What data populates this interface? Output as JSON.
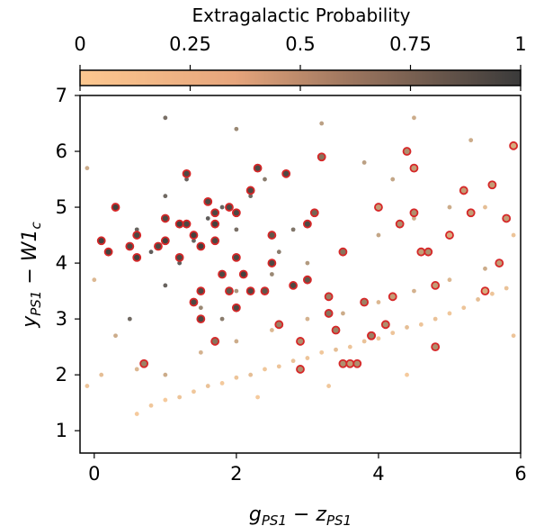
{
  "chart_data": {
    "type": "scatter",
    "title": "",
    "xlabel": "g_PS1 − z_PS1",
    "ylabel": "y_PS1 − W1_c",
    "xlim": [
      -0.2,
      6.0
    ],
    "ylim": [
      0.6,
      7.0
    ],
    "xticks": [
      "0",
      "2",
      "4",
      "6"
    ],
    "yticks": [
      "1",
      "2",
      "3",
      "4",
      "5",
      "6",
      "7"
    ],
    "grid": false,
    "colorbar": {
      "title": "Extragalactic Probability",
      "range": [
        0,
        1
      ],
      "ticks": [
        "0",
        "0.25",
        "0.5",
        "0.75",
        "1"
      ],
      "colormap_low": "#fdc890",
      "colormap_high": "#3a3a3a",
      "placement": "top"
    },
    "series": [
      {
        "marker": "small-dot",
        "points": [
          [
            0.6,
            1.3,
            0.05
          ],
          [
            0.8,
            1.45,
            0.08
          ],
          [
            1.0,
            1.55,
            0.05
          ],
          [
            1.2,
            1.6,
            0.1
          ],
          [
            1.4,
            1.7,
            0.08
          ],
          [
            1.6,
            1.8,
            0.12
          ],
          [
            1.8,
            1.85,
            0.06
          ],
          [
            2.0,
            1.95,
            0.1
          ],
          [
            2.2,
            2.0,
            0.15
          ],
          [
            2.4,
            2.1,
            0.08
          ],
          [
            2.6,
            2.15,
            0.1
          ],
          [
            2.8,
            2.25,
            0.12
          ],
          [
            3.0,
            2.3,
            0.1
          ],
          [
            3.2,
            2.4,
            0.08
          ],
          [
            3.4,
            2.45,
            0.15
          ],
          [
            3.6,
            2.5,
            0.1
          ],
          [
            3.8,
            2.6,
            0.12
          ],
          [
            4.0,
            2.65,
            0.08
          ],
          [
            4.2,
            2.75,
            0.1
          ],
          [
            4.4,
            2.85,
            0.15
          ],
          [
            4.6,
            2.9,
            0.1
          ],
          [
            4.8,
            3.0,
            0.12
          ],
          [
            5.0,
            3.1,
            0.08
          ],
          [
            5.2,
            3.2,
            0.1
          ],
          [
            5.4,
            3.35,
            0.15
          ],
          [
            5.6,
            3.45,
            0.1
          ],
          [
            5.8,
            3.55,
            0.12
          ],
          [
            1.0,
            2.0,
            0.3
          ],
          [
            1.5,
            2.4,
            0.25
          ],
          [
            2.0,
            2.6,
            0.3
          ],
          [
            2.5,
            2.8,
            0.2
          ],
          [
            3.0,
            3.0,
            0.25
          ],
          [
            3.5,
            3.1,
            0.3
          ],
          [
            4.0,
            3.3,
            0.2
          ],
          [
            4.5,
            3.5,
            0.25
          ],
          [
            5.0,
            3.7,
            0.2
          ],
          [
            5.5,
            3.9,
            0.3
          ],
          [
            2.0,
            3.5,
            0.5
          ],
          [
            2.5,
            3.8,
            0.6
          ],
          [
            3.0,
            4.0,
            0.45
          ],
          [
            3.5,
            4.2,
            0.4
          ],
          [
            4.0,
            4.5,
            0.35
          ],
          [
            4.5,
            4.8,
            0.3
          ],
          [
            5.0,
            5.0,
            0.3
          ],
          [
            1.5,
            3.2,
            0.6
          ],
          [
            1.0,
            3.6,
            0.9
          ],
          [
            1.2,
            4.0,
            0.95
          ],
          [
            1.4,
            4.4,
            0.9
          ],
          [
            1.6,
            4.8,
            0.95
          ],
          [
            1.8,
            5.0,
            0.9
          ],
          [
            0.8,
            4.2,
            0.95
          ],
          [
            0.6,
            4.6,
            0.9
          ],
          [
            1.0,
            5.2,
            0.85
          ],
          [
            1.3,
            5.5,
            0.9
          ],
          [
            2.0,
            4.6,
            0.8
          ],
          [
            2.2,
            5.2,
            0.85
          ],
          [
            2.6,
            4.2,
            0.7
          ],
          [
            2.8,
            4.6,
            0.75
          ],
          [
            0.5,
            3.0,
            0.85
          ],
          [
            1.8,
            3.0,
            0.7
          ],
          [
            1.0,
            6.6,
            0.8
          ],
          [
            2.0,
            6.4,
            0.6
          ],
          [
            3.2,
            6.5,
            0.4
          ],
          [
            4.5,
            6.6,
            0.3
          ],
          [
            5.3,
            6.2,
            0.3
          ],
          [
            -0.1,
            1.8,
            0.1
          ],
          [
            0.1,
            2.0,
            0.15
          ],
          [
            -0.1,
            5.7,
            0.3
          ],
          [
            0.0,
            3.7,
            0.2
          ],
          [
            5.9,
            2.7,
            0.1
          ],
          [
            5.9,
            4.5,
            0.1
          ],
          [
            5.5,
            5.0,
            0.15
          ],
          [
            3.8,
            5.8,
            0.4
          ],
          [
            4.2,
            5.5,
            0.35
          ],
          [
            2.4,
            5.5,
            0.7
          ],
          [
            0.3,
            2.7,
            0.3
          ],
          [
            0.6,
            2.1,
            0.2
          ],
          [
            2.3,
            1.6,
            0.05
          ],
          [
            3.3,
            1.8,
            0.08
          ],
          [
            4.4,
            2.0,
            0.05
          ]
        ]
      },
      {
        "marker": "red-ring",
        "points": [
          [
            0.1,
            4.4,
            0.95
          ],
          [
            0.2,
            4.2,
            0.95
          ],
          [
            0.3,
            5.0,
            0.95
          ],
          [
            0.5,
            4.3,
            0.9
          ],
          [
            0.6,
            4.5,
            0.9
          ],
          [
            0.6,
            4.1,
            0.95
          ],
          [
            0.7,
            2.2,
            0.5
          ],
          [
            0.9,
            4.3,
            0.9
          ],
          [
            1.0,
            4.8,
            0.9
          ],
          [
            1.0,
            4.4,
            0.95
          ],
          [
            1.2,
            4.1,
            0.9
          ],
          [
            1.2,
            4.7,
            0.95
          ],
          [
            1.3,
            5.6,
            0.9
          ],
          [
            1.3,
            4.7,
            0.9
          ],
          [
            1.4,
            4.5,
            0.95
          ],
          [
            1.4,
            3.3,
            0.9
          ],
          [
            1.5,
            3.5,
            0.9
          ],
          [
            1.5,
            4.3,
            0.95
          ],
          [
            1.5,
            3.0,
            0.9
          ],
          [
            1.6,
            5.1,
            0.9
          ],
          [
            1.7,
            4.9,
            0.9
          ],
          [
            1.7,
            4.7,
            0.95
          ],
          [
            1.7,
            4.4,
            0.9
          ],
          [
            1.7,
            2.6,
            0.6
          ],
          [
            1.8,
            3.8,
            0.9
          ],
          [
            1.9,
            5.0,
            0.9
          ],
          [
            1.9,
            3.5,
            0.8
          ],
          [
            2.0,
            4.9,
            0.9
          ],
          [
            2.0,
            3.2,
            0.9
          ],
          [
            2.0,
            4.1,
            0.9
          ],
          [
            2.1,
            3.8,
            0.95
          ],
          [
            2.2,
            3.5,
            0.9
          ],
          [
            2.2,
            5.3,
            0.9
          ],
          [
            2.3,
            5.7,
            0.9
          ],
          [
            2.4,
            3.5,
            0.8
          ],
          [
            2.5,
            4.0,
            0.9
          ],
          [
            2.5,
            4.5,
            0.8
          ],
          [
            2.6,
            2.9,
            0.5
          ],
          [
            2.7,
            5.6,
            0.9
          ],
          [
            2.8,
            3.6,
            0.9
          ],
          [
            2.9,
            2.6,
            0.4
          ],
          [
            2.9,
            2.1,
            0.4
          ],
          [
            3.0,
            3.7,
            0.8
          ],
          [
            3.0,
            4.7,
            0.9
          ],
          [
            3.1,
            4.9,
            0.7
          ],
          [
            3.2,
            5.9,
            0.6
          ],
          [
            3.3,
            3.4,
            0.5
          ],
          [
            3.3,
            3.1,
            0.6
          ],
          [
            3.4,
            2.8,
            0.5
          ],
          [
            3.5,
            4.2,
            0.6
          ],
          [
            3.5,
            2.2,
            0.4
          ],
          [
            3.6,
            2.2,
            0.3
          ],
          [
            3.7,
            2.2,
            0.4
          ],
          [
            3.8,
            3.3,
            0.5
          ],
          [
            3.9,
            2.7,
            0.3
          ],
          [
            3.9,
            2.7,
            0.5
          ],
          [
            4.0,
            5.0,
            0.3
          ],
          [
            4.1,
            2.9,
            0.4
          ],
          [
            4.2,
            3.4,
            0.3
          ],
          [
            4.3,
            4.7,
            0.4
          ],
          [
            4.4,
            6.0,
            0.4
          ],
          [
            4.5,
            5.7,
            0.3
          ],
          [
            4.5,
            4.9,
            0.4
          ],
          [
            4.6,
            4.2,
            0.3
          ],
          [
            4.7,
            4.2,
            0.4
          ],
          [
            4.8,
            2.5,
            0.4
          ],
          [
            4.8,
            3.6,
            0.3
          ],
          [
            5.0,
            4.5,
            0.2
          ],
          [
            5.2,
            5.3,
            0.3
          ],
          [
            5.3,
            4.9,
            0.3
          ],
          [
            5.5,
            3.5,
            0.2
          ],
          [
            5.6,
            5.4,
            0.3
          ],
          [
            5.7,
            4.0,
            0.3
          ],
          [
            5.8,
            4.8,
            0.3
          ],
          [
            5.9,
            6.1,
            0.2
          ]
        ]
      }
    ]
  }
}
